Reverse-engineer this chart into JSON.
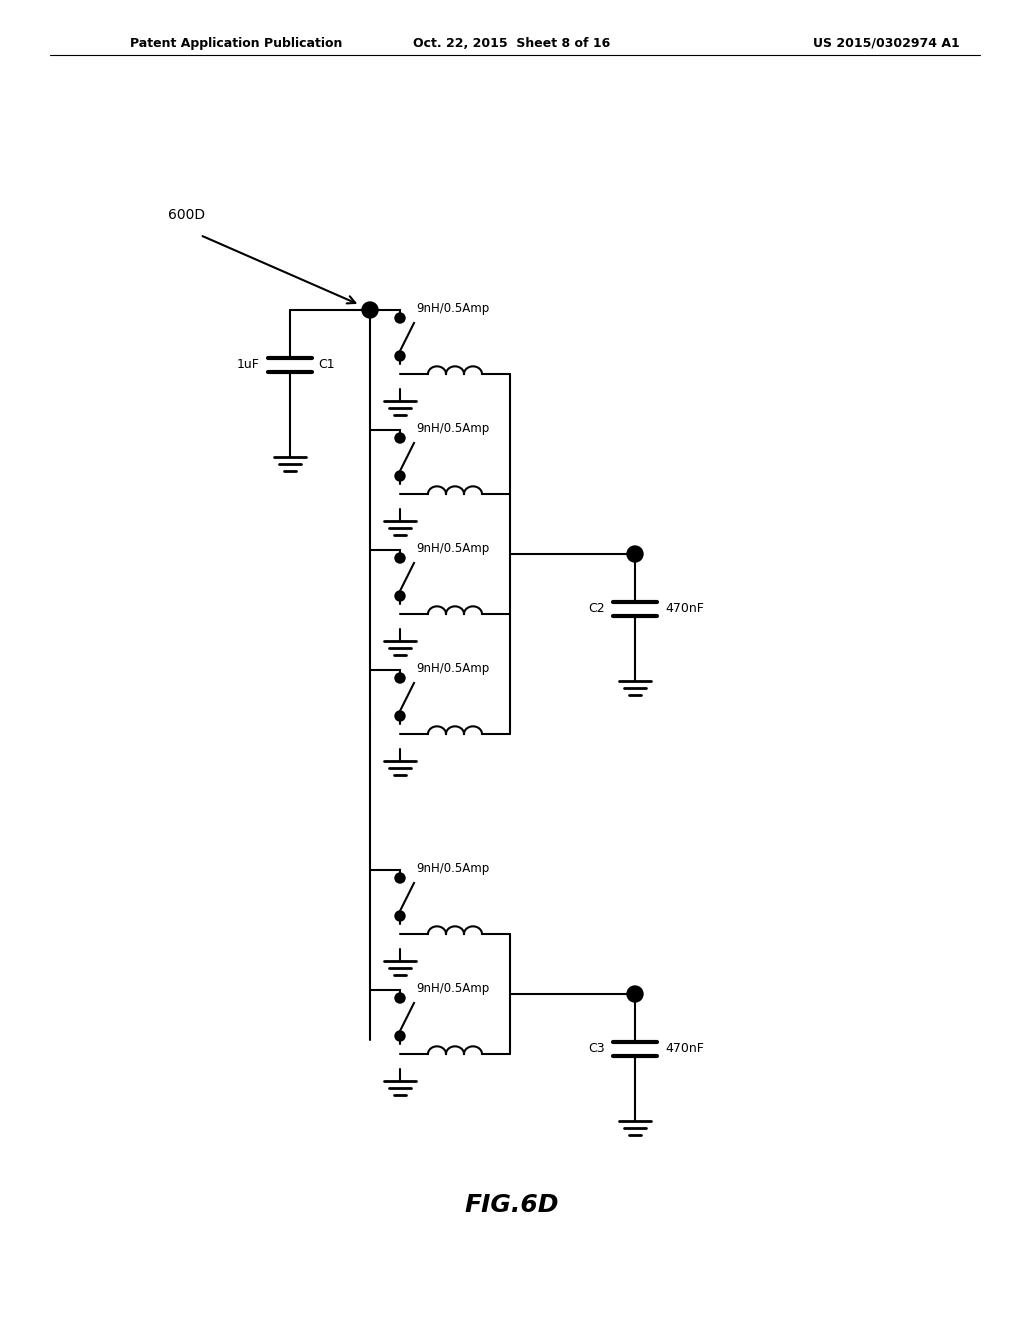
{
  "title": "FIG.6D",
  "header_left": "Patent Application Publication",
  "header_center": "Oct. 22, 2015  Sheet 8 of 16",
  "header_right": "US 2015/0302974 A1",
  "label_600D": "600D",
  "label_C1": "C1",
  "label_1uF": "1uF",
  "label_C2": "C2",
  "label_470nF_2": "470nF",
  "label_C3": "C3",
  "label_470nF_3": "470nF",
  "inductor_label": "9nH/0.5Amp",
  "bg_color": "#ffffff",
  "line_color": "#000000",
  "line_width": 1.5,
  "font_size": 9,
  "title_font_size": 18
}
